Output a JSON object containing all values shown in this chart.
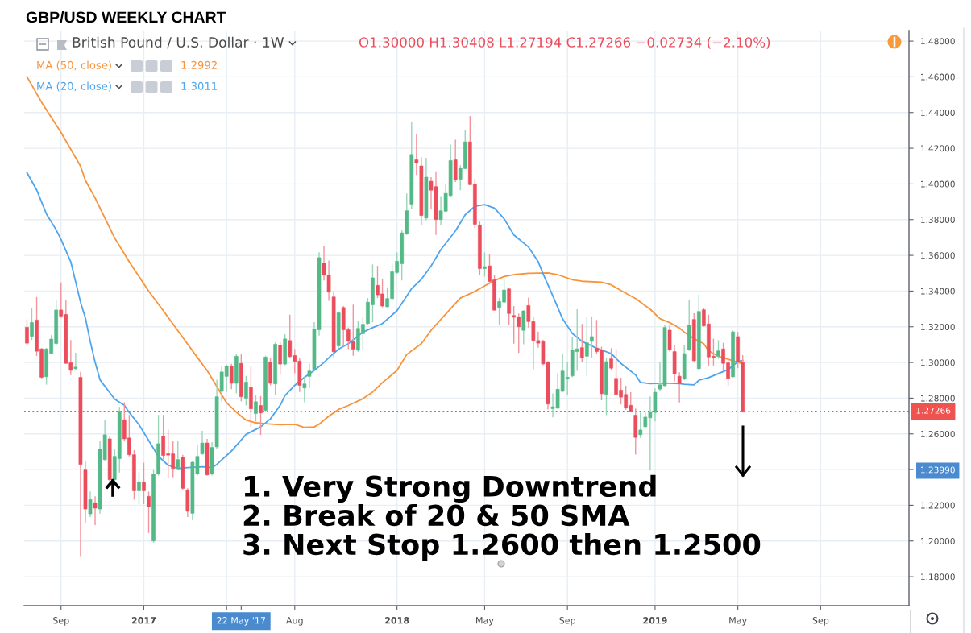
{
  "chart_data": {
    "type": "candlestick",
    "title": "GBP/USD WEEKLY CHART",
    "subtitle": "British Pound / U.S. Dollar · 1W",
    "annotations": [
      "O1.30000 H1.30408 L1.27194 C1.27266 −0.02734 (−2.10%)",
      "1.2992",
      "1.3011",
      "1. Very Strong Downtrend",
      "2. Break of 20 & 50 SMA",
      "3. Next Stop 1.2600 then 1.2500"
    ],
    "x": [
      "2016-07-18",
      "2016-07-25",
      "2016-08-01",
      "2016-08-08",
      "2016-08-15",
      "2016-08-22",
      "2016-08-29",
      "2016-09-05",
      "2016-09-12",
      "2016-09-19",
      "2016-09-26",
      "2016-10-03",
      "2016-10-10",
      "2016-10-17",
      "2016-10-24",
      "2016-10-31",
      "2016-11-07",
      "2016-11-14",
      "2016-11-21",
      "2016-11-28",
      "2016-12-05",
      "2016-12-12",
      "2016-12-19",
      "2016-12-26",
      "2017-01-02",
      "2017-01-09",
      "2017-01-16",
      "2017-01-23",
      "2017-01-30",
      "2017-02-06",
      "2017-02-13",
      "2017-02-20",
      "2017-02-27",
      "2017-03-06",
      "2017-03-13",
      "2017-03-20",
      "2017-03-27",
      "2017-04-03",
      "2017-04-10",
      "2017-04-17",
      "2017-04-24",
      "2017-05-01",
      "2017-05-08",
      "2017-05-15",
      "2017-05-22",
      "2017-05-29",
      "2017-06-05",
      "2017-06-12",
      "2017-06-19",
      "2017-06-26",
      "2017-07-03",
      "2017-07-10",
      "2017-07-17",
      "2017-07-24",
      "2017-07-31",
      "2017-08-07",
      "2017-08-14",
      "2017-08-21",
      "2017-08-28",
      "2017-09-04",
      "2017-09-11",
      "2017-09-18",
      "2017-09-25",
      "2017-10-02",
      "2017-10-09",
      "2017-10-16",
      "2017-10-23",
      "2017-10-30",
      "2017-11-06",
      "2017-11-13",
      "2017-11-20",
      "2017-11-27",
      "2017-12-04",
      "2017-12-11",
      "2017-12-18",
      "2017-12-25",
      "2018-01-01",
      "2018-01-08",
      "2018-01-15",
      "2018-01-22",
      "2018-01-29",
      "2018-02-05",
      "2018-02-12",
      "2018-02-19",
      "2018-02-26",
      "2018-03-05",
      "2018-03-12",
      "2018-03-19",
      "2018-03-26",
      "2018-04-02",
      "2018-04-09",
      "2018-04-16",
      "2018-04-23",
      "2018-04-30",
      "2018-05-07",
      "2018-05-14",
      "2018-05-21",
      "2018-05-28",
      "2018-06-04",
      "2018-06-11",
      "2018-06-18",
      "2018-06-25",
      "2018-07-02",
      "2018-07-09",
      "2018-07-16",
      "2018-07-23",
      "2018-07-30",
      "2018-08-06",
      "2018-08-13",
      "2018-08-20",
      "2018-08-27",
      "2018-09-03",
      "2018-09-10",
      "2018-09-17",
      "2018-09-24",
      "2018-10-01",
      "2018-10-08",
      "2018-10-15",
      "2018-10-22",
      "2018-10-29",
      "2018-11-05",
      "2018-11-12",
      "2018-11-19",
      "2018-11-26",
      "2018-12-03",
      "2018-12-10",
      "2018-12-17",
      "2018-12-24",
      "2018-12-31",
      "2019-01-07",
      "2019-01-14",
      "2019-01-21",
      "2019-01-28",
      "2019-02-04",
      "2019-02-11",
      "2019-02-18",
      "2019-02-25",
      "2019-03-04",
      "2019-03-11",
      "2019-03-18",
      "2019-03-25",
      "2019-04-01",
      "2019-04-08",
      "2019-04-15",
      "2019-04-22",
      "2019-04-29",
      "2019-05-06",
      "2019-05-13"
    ],
    "ohlc": [
      [
        1.3197,
        1.3242,
        1.3099,
        1.3108
      ],
      [
        1.3147,
        1.3305,
        1.3126,
        1.3224
      ],
      [
        1.3238,
        1.3367,
        1.3037,
        1.3063
      ],
      [
        1.3076,
        1.3081,
        1.2911,
        1.2917
      ],
      [
        1.292,
        1.3081,
        1.2876,
        1.3076
      ],
      [
        1.3051,
        1.3153,
        1.3046,
        1.3131
      ],
      [
        1.3106,
        1.3349,
        1.3099,
        1.3294
      ],
      [
        1.3294,
        1.3448,
        1.3251,
        1.326
      ],
      [
        1.3269,
        1.3349,
        1.2992,
        1.2995
      ],
      [
        1.2999,
        1.3126,
        1.2929,
        1.2956
      ],
      [
        1.2965,
        1.3054,
        1.2956,
        1.2974
      ],
      [
        1.2917,
        1.2947,
        1.1911,
        1.2429
      ],
      [
        1.2402,
        1.2447,
        1.2098,
        1.2179
      ],
      [
        1.2152,
        1.2277,
        1.2134,
        1.2232
      ],
      [
        1.2214,
        1.225,
        1.2089,
        1.2184
      ],
      [
        1.2179,
        1.2563,
        1.2152,
        1.2515
      ],
      [
        1.2456,
        1.2676,
        1.2447,
        1.2595
      ],
      [
        1.2572,
        1.259,
        1.2331,
        1.2343
      ],
      [
        1.2343,
        1.2518,
        1.2331,
        1.2474
      ],
      [
        1.2461,
        1.2751,
        1.2384,
        1.2727
      ],
      [
        1.2679,
        1.2777,
        1.2563,
        1.2572
      ],
      [
        1.2577,
        1.2706,
        1.2474,
        1.2483
      ],
      [
        1.2483,
        1.2509,
        1.2232,
        1.2281
      ],
      [
        1.2281,
        1.2384,
        1.2206,
        1.2331
      ],
      [
        1.2331,
        1.2438,
        1.2206,
        1.2281
      ],
      [
        1.225,
        1.2277,
        1.2045,
        1.2193
      ],
      [
        1.2,
        1.2402,
        1.1991,
        1.2375
      ],
      [
        1.2375,
        1.2706,
        1.2366,
        1.2545
      ],
      [
        1.2586,
        1.2706,
        1.2456,
        1.2479
      ],
      [
        1.2489,
        1.2624,
        1.2354,
        1.2481
      ],
      [
        1.2488,
        1.2563,
        1.2357,
        1.2406
      ],
      [
        1.2406,
        1.2563,
        1.2402,
        1.2456
      ],
      [
        1.247,
        1.2483,
        1.2286,
        1.2295
      ],
      [
        1.2286,
        1.2295,
        1.2134,
        1.2166
      ],
      [
        1.2155,
        1.2447,
        1.2116,
        1.2441
      ],
      [
        1.2375,
        1.2536,
        1.2366,
        1.2474
      ],
      [
        1.2488,
        1.2617,
        1.2483,
        1.2549
      ],
      [
        1.2549,
        1.2572,
        1.2366,
        1.237
      ],
      [
        1.2375,
        1.2554,
        1.2366,
        1.2524
      ],
      [
        1.2527,
        1.2903,
        1.2518,
        1.2808
      ],
      [
        1.2838,
        1.2977,
        1.2782,
        1.2947
      ],
      [
        1.2922,
        1.2988,
        1.2835,
        1.298
      ],
      [
        1.298,
        1.2992,
        1.285,
        1.2883
      ],
      [
        1.2883,
        1.305,
        1.2827,
        1.3035
      ],
      [
        1.2995,
        1.3045,
        1.2782,
        1.2808
      ],
      [
        1.28,
        1.2925,
        1.2759,
        1.289
      ],
      [
        1.286,
        1.2977,
        1.2639,
        1.274
      ],
      [
        1.2714,
        1.282,
        1.2669,
        1.278
      ],
      [
        1.2759,
        1.2812,
        1.2594,
        1.2717
      ],
      [
        1.2732,
        1.3038,
        1.2726,
        1.303
      ],
      [
        1.3003,
        1.3027,
        1.2872,
        1.2883
      ],
      [
        1.288,
        1.3113,
        1.282,
        1.3102
      ],
      [
        1.3096,
        1.3113,
        1.2932,
        1.2991
      ],
      [
        1.2991,
        1.3158,
        1.2985,
        1.3132
      ],
      [
        1.3123,
        1.3268,
        1.3023,
        1.3033
      ],
      [
        1.3039,
        1.3075,
        1.294,
        1.3006
      ],
      [
        1.3008,
        1.3023,
        1.2835,
        1.2872
      ],
      [
        1.2857,
        1.2917,
        1.2777,
        1.288
      ],
      [
        1.2922,
        1.2994,
        1.2857,
        1.2952
      ],
      [
        1.2962,
        1.3226,
        1.2955,
        1.3186
      ],
      [
        1.3183,
        1.3617,
        1.315,
        1.3587
      ],
      [
        1.3556,
        1.3654,
        1.3459,
        1.3489
      ],
      [
        1.3489,
        1.3571,
        1.3346,
        1.3394
      ],
      [
        1.3367,
        1.3399,
        1.303,
        1.306
      ],
      [
        1.3093,
        1.3286,
        1.3083,
        1.3278
      ],
      [
        1.3308,
        1.3316,
        1.309,
        1.3183
      ],
      [
        1.3183,
        1.3196,
        1.3075,
        1.312
      ],
      [
        1.3117,
        1.3324,
        1.3038,
        1.3075
      ],
      [
        1.3068,
        1.3233,
        1.306,
        1.3191
      ],
      [
        1.3161,
        1.3256,
        1.3068,
        1.3214
      ],
      [
        1.3218,
        1.3361,
        1.321,
        1.3338
      ],
      [
        1.3323,
        1.3549,
        1.3225,
        1.3474
      ],
      [
        1.3432,
        1.3541,
        1.3361,
        1.3379
      ],
      [
        1.3384,
        1.3466,
        1.3309,
        1.3316
      ],
      [
        1.3312,
        1.3421,
        1.3309,
        1.3358
      ],
      [
        1.3358,
        1.3549,
        1.3353,
        1.3508
      ],
      [
        1.3504,
        1.3617,
        1.3496,
        1.3567
      ],
      [
        1.3553,
        1.3744,
        1.3459,
        1.3726
      ],
      [
        1.3722,
        1.3947,
        1.3714,
        1.385
      ],
      [
        1.3887,
        1.4346,
        1.3857,
        1.4165
      ],
      [
        1.4135,
        1.4281,
        1.405,
        1.4116
      ],
      [
        1.4101,
        1.415,
        1.3767,
        1.3823
      ],
      [
        1.3809,
        1.4146,
        1.3797,
        1.4038
      ],
      [
        1.4015,
        1.4038,
        1.3857,
        1.3965
      ],
      [
        1.3985,
        1.4071,
        1.3714,
        1.38
      ],
      [
        1.38,
        1.3932,
        1.3767,
        1.385
      ],
      [
        1.3847,
        1.3996,
        1.3842,
        1.3947
      ],
      [
        1.3935,
        1.4221,
        1.3925,
        1.4131
      ],
      [
        1.4135,
        1.4248,
        1.4011,
        1.4023
      ],
      [
        1.4026,
        1.4105,
        1.3965,
        1.409
      ],
      [
        1.4086,
        1.4301,
        1.4083,
        1.4236
      ],
      [
        1.4236,
        1.438,
        1.3993,
        1.3996
      ],
      [
        1.4,
        1.403,
        1.3749,
        1.3774
      ],
      [
        1.377,
        1.3789,
        1.3489,
        1.3526
      ],
      [
        1.3526,
        1.3617,
        1.3481,
        1.3537
      ],
      [
        1.3541,
        1.3609,
        1.3444,
        1.3454
      ],
      [
        1.3463,
        1.3489,
        1.329,
        1.3293
      ],
      [
        1.3308,
        1.3361,
        1.3211,
        1.3341
      ],
      [
        1.3338,
        1.3469,
        1.3331,
        1.3406
      ],
      [
        1.3412,
        1.3421,
        1.3211,
        1.3274
      ],
      [
        1.3263,
        1.3316,
        1.3105,
        1.3253
      ],
      [
        1.3253,
        1.3274,
        1.3053,
        1.32
      ],
      [
        1.318,
        1.3293,
        1.3102,
        1.3289
      ],
      [
        1.3319,
        1.3364,
        1.3196,
        1.3229
      ],
      [
        1.3229,
        1.3256,
        1.2962,
        1.3123
      ],
      [
        1.3123,
        1.3173,
        1.3083,
        1.3108
      ],
      [
        1.3117,
        1.3128,
        1.2985,
        1.2992
      ],
      [
        1.3,
        1.3008,
        1.2737,
        1.2767
      ],
      [
        1.2741,
        1.2827,
        1.2692,
        1.2752
      ],
      [
        1.2744,
        1.294,
        1.2741,
        1.285
      ],
      [
        1.2838,
        1.3045,
        1.2835,
        1.2952
      ],
      [
        1.291,
        1.3,
        1.282,
        1.2917
      ],
      [
        1.2925,
        1.3143,
        1.2917,
        1.3068
      ],
      [
        1.3061,
        1.3298,
        1.2953,
        1.3076
      ],
      [
        1.3083,
        1.3216,
        1.3005,
        1.3025
      ],
      [
        1.3035,
        1.3253,
        1.2926,
        1.311
      ],
      [
        1.3118,
        1.3253,
        1.3028,
        1.3145
      ],
      [
        1.308,
        1.3238,
        1.305,
        1.3061
      ],
      [
        1.307,
        1.3088,
        1.2788,
        1.2825
      ],
      [
        1.2821,
        1.3028,
        1.2705,
        1.3005
      ],
      [
        1.302,
        1.308,
        1.296,
        1.2968
      ],
      [
        1.2911,
        1.3076,
        1.2815,
        1.2821
      ],
      [
        1.2845,
        1.2915,
        1.2765,
        1.2806
      ],
      [
        1.2821,
        1.287,
        1.2735,
        1.2745
      ],
      [
        1.276,
        1.2833,
        1.2724,
        1.2727
      ],
      [
        1.2705,
        1.2742,
        1.2484,
        1.258
      ],
      [
        1.2595,
        1.272,
        1.2577,
        1.2622
      ],
      [
        1.264,
        1.272,
        1.263,
        1.2694
      ],
      [
        1.269,
        1.281,
        1.2395,
        1.2724
      ],
      [
        1.272,
        1.2855,
        1.267,
        1.2833
      ],
      [
        1.2851,
        1.3001,
        1.284,
        1.2875
      ],
      [
        1.287,
        1.3211,
        1.2866,
        1.3196
      ],
      [
        1.3181,
        1.3208,
        1.3061,
        1.307
      ],
      [
        1.3061,
        1.3095,
        1.2893,
        1.2935
      ],
      [
        1.2923,
        1.2945,
        1.2776,
        1.2881
      ],
      [
        1.2908,
        1.3095,
        1.29,
        1.305
      ],
      [
        1.307,
        1.3351,
        1.3065,
        1.3208
      ],
      [
        1.3241,
        1.3276,
        1.3005,
        1.301
      ],
      [
        1.2965,
        1.3381,
        1.2953,
        1.3286
      ],
      [
        1.3295,
        1.3306,
        1.3201,
        1.3205
      ],
      [
        1.3216,
        1.3268,
        1.2983,
        1.3031
      ],
      [
        1.3035,
        1.3133,
        1.2983,
        1.3028
      ],
      [
        1.3035,
        1.3125,
        1.302,
        1.3065
      ],
      [
        1.3076,
        1.311,
        1.2953,
        1.2995
      ],
      [
        1.2998,
        1.302,
        1.287,
        1.2911
      ],
      [
        1.292,
        1.3178,
        1.2915,
        1.3171
      ],
      [
        1.3145,
        1.3171,
        1.2968,
        1.3005
      ],
      [
        1.3,
        1.30408,
        1.27194,
        1.27266
      ]
    ],
    "colors": [
      "#eb4d5c",
      "#53b987",
      "#eb4d5c",
      "#eb4d5c",
      "#53b987",
      "#53b987",
      "#53b987",
      "#eb4d5c",
      "#eb4d5c",
      "#eb4d5c",
      "#53b987",
      "#eb4d5c",
      "#eb4d5c",
      "#53b987",
      "#eb4d5c",
      "#53b987",
      "#53b987",
      "#eb4d5c",
      "#53b987",
      "#53b987",
      "#eb4d5c",
      "#eb4d5c",
      "#eb4d5c",
      "#53b987",
      "#eb4d5c",
      "#eb4d5c",
      "#53b987",
      "#53b987",
      "#eb4d5c",
      "#eb4d5c",
      "#eb4d5c",
      "#53b987",
      "#eb4d5c",
      "#eb4d5c",
      "#53b987",
      "#53b987",
      "#53b987",
      "#eb4d5c",
      "#53b987",
      "#53b987",
      "#53b987",
      "#53b987",
      "#eb4d5c",
      "#53b987",
      "#eb4d5c",
      "#53b987",
      "#eb4d5c",
      "#53b987",
      "#eb4d5c",
      "#53b987",
      "#eb4d5c",
      "#53b987",
      "#eb4d5c",
      "#53b987",
      "#eb4d5c",
      "#eb4d5c",
      "#eb4d5c",
      "#53b987",
      "#53b987",
      "#53b987",
      "#53b987",
      "#eb4d5c",
      "#eb4d5c",
      "#eb4d5c",
      "#53b987",
      "#eb4d5c",
      "#eb4d5c",
      "#eb4d5c",
      "#53b987",
      "#53b987",
      "#53b987",
      "#53b987",
      "#eb4d5c",
      "#eb4d5c",
      "#53b987",
      "#53b987",
      "#53b987",
      "#53b987",
      "#53b987",
      "#53b987",
      "#eb4d5c",
      "#eb4d5c",
      "#53b987",
      "#eb4d5c",
      "#eb4d5c",
      "#53b987",
      "#53b987",
      "#53b987",
      "#eb4d5c",
      "#53b987",
      "#53b987",
      "#eb4d5c",
      "#eb4d5c",
      "#eb4d5c",
      "#53b987",
      "#eb4d5c",
      "#eb4d5c",
      "#53b987",
      "#53b987",
      "#eb4d5c",
      "#eb4d5c",
      "#eb4d5c",
      "#53b987",
      "#eb4d5c",
      "#eb4d5c",
      "#eb4d5c",
      "#eb4d5c",
      "#eb4d5c",
      "#53b987",
      "#53b987",
      "#53b987",
      "#53b987",
      "#53b987",
      "#53b987",
      "#eb4d5c",
      "#53b987",
      "#53b987",
      "#eb4d5c",
      "#eb4d5c",
      "#53b987",
      "#eb4d5c",
      "#eb4d5c",
      "#eb4d5c",
      "#eb4d5c",
      "#eb4d5c",
      "#eb4d5c",
      "#53b987",
      "#53b987",
      "#53b987",
      "#53b987",
      "#53b987",
      "#53b987",
      "#eb4d5c",
      "#eb4d5c",
      "#eb4d5c",
      "#53b987",
      "#53b987",
      "#eb4d5c",
      "#53b987",
      "#eb4d5c",
      "#eb4d5c",
      "#eb4d5c",
      "#53b987",
      "#eb4d5c",
      "#eb4d5c",
      "#53b987",
      "#eb4d5c",
      "#eb4d5c"
    ],
    "series": [
      {
        "name": "MA (50, close)",
        "type": "line",
        "color": "#f7943c",
        "x": [
          "2016-07-18",
          "2016-08-08",
          "2016-09-05",
          "2016-10-03",
          "2016-10-10",
          "2016-10-24",
          "2016-11-21",
          "2016-12-12",
          "2017-01-09",
          "2017-01-30",
          "2017-02-27",
          "2017-03-20",
          "2017-04-03",
          "2017-04-17",
          "2017-05-01",
          "2017-05-15",
          "2017-05-29",
          "2017-06-12",
          "2017-06-26",
          "2017-07-17",
          "2017-08-07",
          "2017-08-21",
          "2017-09-04",
          "2017-09-11",
          "2017-09-25",
          "2017-10-09",
          "2017-10-23",
          "2017-11-13",
          "2017-11-27",
          "2017-12-11",
          "2018-01-01",
          "2018-01-15",
          "2018-02-05",
          "2018-02-19",
          "2018-03-05",
          "2018-03-19",
          "2018-04-02",
          "2018-04-23",
          "2018-05-07",
          "2018-05-21",
          "2018-06-04",
          "2018-06-18",
          "2018-07-09",
          "2018-07-23",
          "2018-08-06",
          "2018-08-20",
          "2018-09-10",
          "2018-09-24",
          "2018-10-22",
          "2018-11-05",
          "2018-11-19",
          "2018-12-10",
          "2018-12-31",
          "2019-01-14",
          "2019-01-28",
          "2019-02-11",
          "2019-02-18",
          "2019-03-04",
          "2019-03-18",
          "2019-03-25",
          "2019-04-08",
          "2019-04-29",
          "2019-05-13"
        ],
        "values": [
          1.4601,
          1.4458,
          1.4288,
          1.41,
          1.402,
          1.3921,
          1.3698,
          1.3564,
          1.34,
          1.329,
          1.314,
          1.3028,
          1.2955,
          1.2865,
          1.2774,
          1.2722,
          1.2677,
          1.2662,
          1.2657,
          1.2651,
          1.2654,
          1.2636,
          1.2639,
          1.2654,
          1.2699,
          1.2737,
          1.2759,
          1.2797,
          1.2835,
          1.2887,
          1.2955,
          1.3045,
          1.3105,
          1.318,
          1.3241,
          1.3301,
          1.3361,
          1.3398,
          1.3429,
          1.3459,
          1.3481,
          1.3492,
          1.3499,
          1.3501,
          1.3502,
          1.3492,
          1.3463,
          1.3455,
          1.345,
          1.3435,
          1.3403,
          1.3358,
          1.3298,
          1.3246,
          1.3223,
          1.3193,
          1.317,
          1.3133,
          1.3105,
          1.3065,
          1.3035,
          1.301,
          1.2992
        ]
      },
      {
        "name": "MA (20, close)",
        "type": "line",
        "color": "#4ea5ee",
        "x": [
          "2016-07-18",
          "2016-08-01",
          "2016-08-15",
          "2016-08-29",
          "2016-09-05",
          "2016-09-19",
          "2016-10-03",
          "2016-10-10",
          "2016-10-17",
          "2016-10-24",
          "2016-10-31",
          "2016-11-14",
          "2016-11-21",
          "2016-12-05",
          "2016-12-12",
          "2016-12-26",
          "2017-01-09",
          "2017-01-23",
          "2017-02-06",
          "2017-02-20",
          "2017-03-06",
          "2017-03-27",
          "2017-04-10",
          "2017-04-17",
          "2017-05-08",
          "2017-05-29",
          "2017-06-19",
          "2017-07-03",
          "2017-07-17",
          "2017-07-24",
          "2017-08-07",
          "2017-08-21",
          "2017-09-04",
          "2017-09-18",
          "2017-09-25",
          "2017-10-09",
          "2017-10-23",
          "2017-11-13",
          "2017-11-27",
          "2017-12-11",
          "2018-01-01",
          "2018-01-22",
          "2018-02-05",
          "2018-02-19",
          "2018-03-05",
          "2018-03-26",
          "2018-04-09",
          "2018-04-23",
          "2018-05-07",
          "2018-05-21",
          "2018-06-04",
          "2018-06-18",
          "2018-07-09",
          "2018-07-23",
          "2018-07-30",
          "2018-08-06",
          "2018-08-13",
          "2018-08-27",
          "2018-09-10",
          "2018-09-24",
          "2018-10-15",
          "2018-11-05",
          "2018-11-19",
          "2018-12-10",
          "2018-12-17",
          "2018-12-31",
          "2019-01-21",
          "2019-02-11",
          "2019-02-18",
          "2019-03-04",
          "2019-03-11",
          "2019-03-25",
          "2019-04-08",
          "2019-04-22",
          "2019-05-06",
          "2019-05-13"
        ],
        "values": [
          1.4064,
          1.3966,
          1.3832,
          1.3743,
          1.3689,
          1.3564,
          1.3338,
          1.325,
          1.3117,
          1.3001,
          1.2903,
          1.2831,
          1.2795,
          1.276,
          1.272,
          1.2652,
          1.2563,
          1.2474,
          1.2424,
          1.2406,
          1.2411,
          1.2416,
          1.2411,
          1.2429,
          1.2504,
          1.2597,
          1.2639,
          1.2684,
          1.276,
          1.2815,
          1.2872,
          1.2917,
          1.2955,
          1.3,
          1.3027,
          1.3075,
          1.3105,
          1.317,
          1.3195,
          1.3218,
          1.329,
          1.3414,
          1.3466,
          1.3541,
          1.3632,
          1.3737,
          1.3827,
          1.3875,
          1.3884,
          1.3865,
          1.3805,
          1.3714,
          1.3647,
          1.3564,
          1.3497,
          1.3435,
          1.3373,
          1.3245,
          1.3163,
          1.3118,
          1.308,
          1.305,
          1.2995,
          1.293,
          1.2888,
          1.2881,
          1.2885,
          1.2881,
          1.2878,
          1.2875,
          1.29,
          1.2915,
          1.2938,
          1.296,
          1.3005,
          1.3011
        ]
      }
    ],
    "xlim": [
      "2016-07-14",
      "2020-01-07"
    ],
    "xticks": [
      {
        "value": "2016-09-05",
        "label": "Sep"
      },
      {
        "value": "2017-01-02",
        "label": "2017"
      },
      {
        "value": "2017-05-01",
        "label": null
      },
      {
        "value": "2017-05-22",
        "label": "22 May '17"
      },
      {
        "value": "2017-08-07",
        "label": "Aug"
      },
      {
        "value": "2018-01-01",
        "label": "2018"
      },
      {
        "value": "2018-05-07",
        "label": "May"
      },
      {
        "value": "2018-09-03",
        "label": "Sep"
      },
      {
        "value": "2019-01-07",
        "label": "2019"
      },
      {
        "value": "2019-05-06",
        "label": "May"
      },
      {
        "value": "2019-09-02",
        "label": "Sep"
      }
    ],
    "ylim": [
      1.1638,
      1.4859
    ],
    "yticks": [
      {
        "value": 1.18,
        "label": "1.18000"
      },
      {
        "value": 1.2,
        "label": "1.20000"
      },
      {
        "value": 1.22,
        "label": "1.22000"
      },
      {
        "value": 1.2399,
        "label": "1.23990"
      },
      {
        "value": 1.24,
        "label": null
      },
      {
        "value": 1.26,
        "label": "1.26000"
      },
      {
        "value": 1.28,
        "label": "1.28000"
      },
      {
        "value": 1.3,
        "label": "1.30000"
      },
      {
        "value": 1.32,
        "label": "1.32000"
      },
      {
        "value": 1.34,
        "label": "1.34000"
      },
      {
        "value": 1.36,
        "label": "1.36000"
      },
      {
        "value": 1.38,
        "label": "1.38000"
      },
      {
        "value": 1.4,
        "label": "1.40000"
      },
      {
        "value": 1.42,
        "label": "1.42000"
      },
      {
        "value": 1.44,
        "label": "1.44000"
      },
      {
        "value": 1.46,
        "label": "1.46000"
      },
      {
        "value": 1.48,
        "label": "1.48000"
      }
    ],
    "ref_lines": [
      {
        "axis": "y",
        "value": 1.27266,
        "label": "1.27266",
        "color": "#ef5350",
        "line_style": "dotted"
      }
    ],
    "grid": true,
    "legend": "top left"
  }
}
